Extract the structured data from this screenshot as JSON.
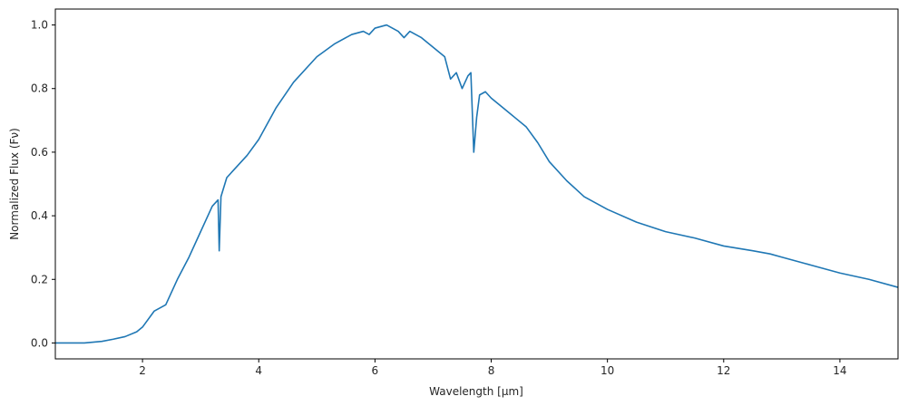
{
  "chart_data": {
    "type": "line",
    "title": "",
    "xlabel": "Wavelength [μm]",
    "ylabel": "Normalized Flux (Fν)",
    "xlim": [
      0.5,
      15.0
    ],
    "ylim": [
      -0.05,
      1.05
    ],
    "x_ticks": [
      2,
      4,
      6,
      8,
      10,
      12,
      14
    ],
    "y_ticks": [
      0.0,
      0.2,
      0.4,
      0.6,
      0.8,
      1.0
    ],
    "x_tick_labels": [
      "2",
      "4",
      "6",
      "8",
      "10",
      "12",
      "14"
    ],
    "y_tick_labels": [
      "0.0",
      "0.2",
      "0.4",
      "0.6",
      "0.8",
      "1.0"
    ],
    "grid": false,
    "legend": "none",
    "series": [
      {
        "color": "#1f77b4",
        "x": [
          0.5,
          1.0,
          1.3,
          1.5,
          1.7,
          1.9,
          2.0,
          2.2,
          2.4,
          2.6,
          2.8,
          3.0,
          3.2,
          3.3,
          3.32,
          3.35,
          3.45,
          3.6,
          3.8,
          4.0,
          4.3,
          4.6,
          5.0,
          5.3,
          5.6,
          5.8,
          5.9,
          6.0,
          6.2,
          6.4,
          6.5,
          6.6,
          6.8,
          7.0,
          7.2,
          7.3,
          7.4,
          7.5,
          7.6,
          7.65,
          7.7,
          7.75,
          7.8,
          7.9,
          8.0,
          8.2,
          8.4,
          8.6,
          8.8,
          9.0,
          9.3,
          9.6,
          9.8,
          10.0,
          10.5,
          11.0,
          11.5,
          12.0,
          12.5,
          12.8,
          13.0,
          13.5,
          14.0,
          14.5,
          15.0
        ],
        "y": [
          0.0,
          0.0,
          0.005,
          0.012,
          0.02,
          0.035,
          0.05,
          0.1,
          0.12,
          0.2,
          0.27,
          0.35,
          0.43,
          0.45,
          0.29,
          0.46,
          0.52,
          0.55,
          0.59,
          0.64,
          0.74,
          0.82,
          0.9,
          0.94,
          0.97,
          0.98,
          0.97,
          0.99,
          1.0,
          0.98,
          0.96,
          0.98,
          0.96,
          0.93,
          0.9,
          0.83,
          0.85,
          0.8,
          0.84,
          0.85,
          0.6,
          0.71,
          0.78,
          0.79,
          0.77,
          0.74,
          0.71,
          0.68,
          0.63,
          0.57,
          0.51,
          0.46,
          0.44,
          0.42,
          0.38,
          0.35,
          0.33,
          0.305,
          0.29,
          0.28,
          0.27,
          0.245,
          0.22,
          0.2,
          0.175
        ]
      }
    ]
  }
}
